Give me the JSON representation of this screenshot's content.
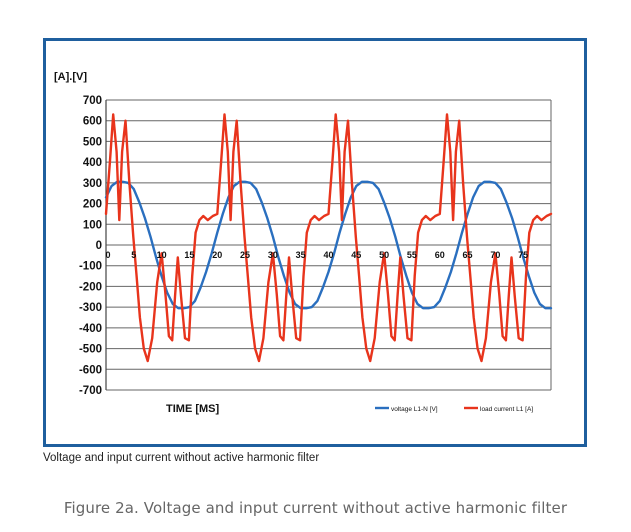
{
  "chart_data": {
    "type": "line",
    "ylabel": "[A].[V]",
    "xlabel": "TIME [MS]",
    "xlim": [
      0,
      80
    ],
    "ylim": [
      -700,
      700
    ],
    "x_ticks": [
      0,
      5,
      10,
      15,
      20,
      25,
      30,
      35,
      40,
      45,
      50,
      55,
      60,
      65,
      70,
      75
    ],
    "y_ticks": [
      700,
      600,
      500,
      400,
      300,
      200,
      100,
      0,
      -100,
      -200,
      -300,
      -400,
      -500,
      -600,
      -700
    ],
    "grid": true,
    "legend_position": "bottom-right",
    "series": [
      {
        "name": "voltage L1-N [V]",
        "color": "#2a6fbf",
        "x": [
          0,
          1,
          2,
          3,
          4,
          5,
          6,
          7,
          8,
          9,
          10,
          11,
          12,
          13,
          14,
          15,
          16,
          17,
          18,
          19,
          20,
          21,
          22,
          23,
          24,
          25,
          26,
          27,
          28,
          29,
          30,
          31,
          32,
          33,
          34,
          35,
          36,
          37,
          38,
          39,
          40,
          41,
          42,
          43,
          44,
          45,
          46,
          47,
          48,
          49,
          50,
          51,
          52,
          53,
          54,
          55,
          56,
          57,
          58,
          59,
          60,
          61,
          62,
          63,
          64,
          65,
          66,
          67,
          68,
          69,
          70,
          71,
          72,
          73,
          74,
          75,
          76,
          77,
          78,
          79,
          80
        ],
        "values": [
          230,
          285,
          305,
          305,
          300,
          270,
          205,
          130,
          40,
          -60,
          -150,
          -230,
          -285,
          -305,
          -305,
          -300,
          -270,
          -205,
          -130,
          -40,
          60,
          150,
          230,
          285,
          305,
          305,
          300,
          270,
          205,
          130,
          40,
          -60,
          -150,
          -230,
          -285,
          -305,
          -305,
          -300,
          -270,
          -205,
          -130,
          -40,
          60,
          150,
          230,
          285,
          305,
          305,
          300,
          270,
          205,
          130,
          40,
          -60,
          -150,
          -230,
          -285,
          -305,
          -305,
          -300,
          -270,
          -205,
          -130,
          -40,
          60,
          150,
          230,
          285,
          305,
          305,
          300,
          270,
          205,
          130,
          40,
          -60,
          -150,
          -230,
          -285,
          -305,
          -305
        ]
      },
      {
        "name": "load current L1 [A]",
        "color": "#e8341c",
        "x": [
          0,
          0.7,
          1.3,
          1.9,
          2.4,
          2.9,
          3.5,
          4.2,
          4.9,
          5.5,
          6.1,
          6.8,
          7.5,
          8.3,
          9.2,
          10,
          10.7,
          11.3,
          11.9,
          12.4,
          12.9,
          13.5,
          14.2,
          14.9,
          15.5,
          16.1,
          16.8,
          17.5,
          18.3,
          19.2,
          20,
          20.7,
          21.3,
          21.9,
          22.4,
          22.9,
          23.5,
          24.2,
          24.9,
          25.5,
          26.1,
          26.8,
          27.5,
          28.3,
          29.2,
          30,
          30.7,
          31.3,
          31.9,
          32.4,
          32.9,
          33.5,
          34.2,
          34.9,
          35.5,
          36.1,
          36.8,
          37.5,
          38.3,
          39.2,
          40,
          40.7,
          41.3,
          41.9,
          42.4,
          42.9,
          43.5,
          44.2,
          44.9,
          45.5,
          46.1,
          46.8,
          47.5,
          48.3,
          49.2,
          50,
          50.7,
          51.3,
          51.9,
          52.4,
          52.9,
          53.5,
          54.2,
          54.9,
          55.5,
          56.1,
          56.8,
          57.5,
          58.3,
          59.2,
          60,
          60.7,
          61.3,
          61.9,
          62.4,
          62.9,
          63.5,
          64.2,
          64.9,
          65.5,
          66.1,
          66.8,
          67.5,
          68.3,
          69.2,
          70,
          70.7,
          71.3,
          71.9,
          72.4,
          72.9,
          73.5,
          74.2,
          74.9,
          75.5,
          76.1,
          76.8,
          77.5,
          78.3,
          79.2,
          80
        ],
        "values": [
          150,
          400,
          630,
          450,
          120,
          450,
          600,
          300,
          40,
          -150,
          -350,
          -500,
          -560,
          -450,
          -180,
          -40,
          -240,
          -440,
          -460,
          -250,
          -60,
          -250,
          -450,
          -460,
          -150,
          60,
          120,
          140,
          120,
          140,
          150,
          400,
          630,
          450,
          120,
          450,
          600,
          300,
          40,
          -150,
          -350,
          -500,
          -560,
          -450,
          -180,
          -40,
          -240,
          -440,
          -460,
          -250,
          -60,
          -250,
          -450,
          -460,
          -150,
          60,
          120,
          140,
          120,
          140,
          150,
          400,
          630,
          450,
          120,
          450,
          600,
          300,
          40,
          -150,
          -350,
          -500,
          -560,
          -450,
          -180,
          -40,
          -240,
          -440,
          -460,
          -250,
          -60,
          -250,
          -450,
          -460,
          -150,
          60,
          120,
          140,
          120,
          140,
          150,
          400,
          630,
          450,
          120,
          450,
          600,
          300,
          40,
          -150,
          -350,
          -500,
          -560,
          -450,
          -180,
          -40,
          -240,
          -440,
          -460,
          -250,
          -60,
          -250,
          -450,
          -460,
          -150,
          60,
          120,
          140,
          120,
          140,
          150
        ]
      }
    ]
  },
  "captions": {
    "inner": "Voltage and input current without active harmonic filter",
    "figure": "Figure 2a. Voltage and input current without active harmonic filter"
  }
}
